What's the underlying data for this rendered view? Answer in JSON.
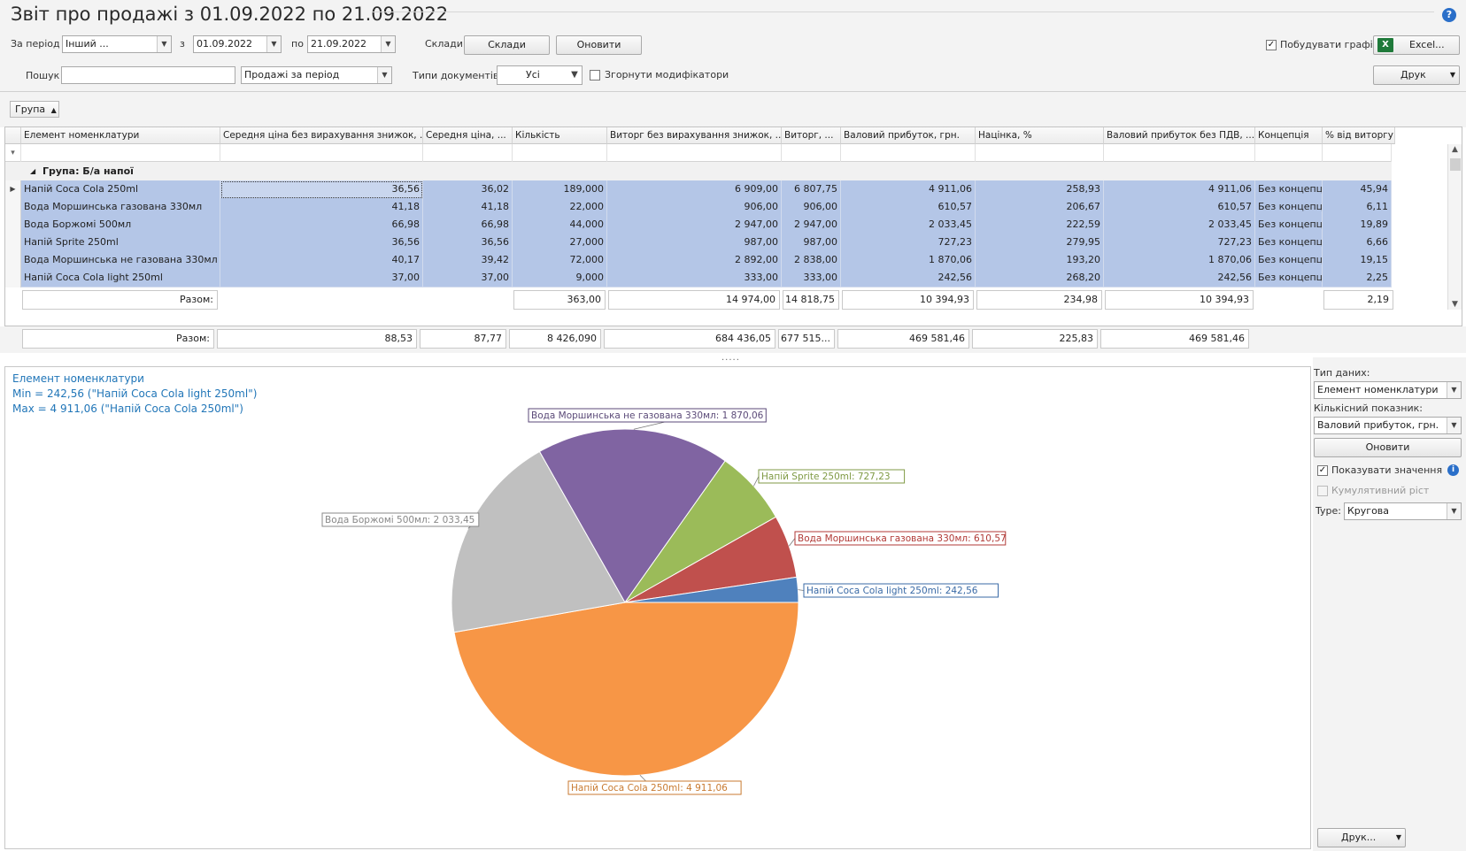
{
  "title": "Звіт про продажі з 01.09.2022 по 21.09.2022",
  "toolbar": {
    "period_label": "За період",
    "period_value": "Інший ...",
    "from_label": "з",
    "from_value": "01.09.2022",
    "to_label": "по",
    "to_value": "21.09.2022",
    "warehouses_label": "Склади:",
    "warehouses_button": "Склади",
    "refresh_button": "Оновити",
    "build_chart_label": "Побудувати графік",
    "build_chart_checked": true,
    "excel_button": "Excel...",
    "search_label": "Пошук",
    "search_value": "",
    "report_type_value": "Продажі за період",
    "doc_types_label": "Типи документів:",
    "doc_types_value": "Усі",
    "collapse_modifiers_label": "Згорнути модифікатори",
    "print_button": "Друк"
  },
  "group_chip": "Група",
  "grid": {
    "columns": [
      "Елемент номенклатури",
      "Середня ціна без вирахування знижок, ...",
      "Середня ціна, ...",
      "Кількість",
      "Виторг без вирахування знижок, ...",
      "Виторг, ...",
      "Валовий прибуток, грн.",
      "Націнка, %",
      "Валовий прибуток без ПДВ, ...",
      "Концепція",
      "% від виторгу"
    ],
    "group_label": "Група: Б/а напої",
    "rows": [
      [
        "Напій Coca Cola 250ml",
        "36,56",
        "36,02",
        "189,000",
        "6 909,00",
        "6 807,75",
        "4 911,06",
        "258,93",
        "4 911,06",
        "Без концепції",
        "45,94"
      ],
      [
        "Вода Моршинська газована 330мл",
        "41,18",
        "41,18",
        "22,000",
        "906,00",
        "906,00",
        "610,57",
        "206,67",
        "610,57",
        "Без концепції",
        "6,11"
      ],
      [
        "Вода Боржомі 500мл",
        "66,98",
        "66,98",
        "44,000",
        "2 947,00",
        "2 947,00",
        "2 033,45",
        "222,59",
        "2 033,45",
        "Без концепції",
        "19,89"
      ],
      [
        "Напій Sprite 250ml",
        "36,56",
        "36,56",
        "27,000",
        "987,00",
        "987,00",
        "727,23",
        "279,95",
        "727,23",
        "Без концепції",
        "6,66"
      ],
      [
        "Вода Моршинська не газована 330мл",
        "40,17",
        "39,42",
        "72,000",
        "2 892,00",
        "2 838,00",
        "1 870,06",
        "193,20",
        "1 870,06",
        "Без концепції",
        "19,15"
      ],
      [
        "Напій Coca Cola light 250ml",
        "37,00",
        "37,00",
        "9,000",
        "333,00",
        "333,00",
        "242,56",
        "268,20",
        "242,56",
        "Без концепції",
        "2,25"
      ]
    ],
    "group_total": {
      "label": "Разом:",
      "qty": "363,00",
      "revenue_gross": "14 974,00",
      "revenue": "14 818,75",
      "gross_profit": "10 394,93",
      "markup": "234,98",
      "gross_profit_novat": "10 394,93",
      "pct": "2,19"
    },
    "grand_total": {
      "label": "Разом:",
      "avg_price_gross": "88,53",
      "avg_price": "87,77",
      "qty": "8 426,090",
      "revenue_gross": "684 436,05",
      "revenue": "677 515...",
      "gross_profit": "469 581,46",
      "markup": "225,83",
      "gross_profit_novat": "469 581,46"
    }
  },
  "splitter": ".....",
  "chart_info": {
    "line1": "Елемент номенклатури",
    "line2": "Min  = 242,56 (\"Напій Coca Cola light 250ml\")",
    "line3": "Max = 4 911,06 (\"Напій Coca Cola 250ml\")"
  },
  "chart_data": {
    "type": "pie",
    "categories": [
      "Напій Coca Cola 250ml",
      "Вода Моршинська газована 330мл",
      "Вода Боржомі 500мл",
      "Напій Sprite 250ml",
      "Вода Моршинська не газована 330мл",
      "Напій Coca Cola light 250ml"
    ],
    "values": [
      4911.06,
      610.57,
      2033.45,
      727.23,
      1870.06,
      242.56
    ],
    "labels": [
      "Напій Coca Cola 250ml: 4 911,06",
      "Вода Моршинська газована 330мл: 610,57",
      "Вода Боржомі 500мл: 2 033,45",
      "Напій Sprite 250ml: 727,23",
      "Вода Моршинська не газована 330мл: 1 870,06",
      "Напій Coca Cola light 250ml: 242,56"
    ],
    "colors": [
      "#f79646",
      "#c0504d",
      "#c0c0c0",
      "#9bbb59",
      "#8064a2",
      "#4f81bd"
    ],
    "label_colors": [
      "#c87a30",
      "#b13a37",
      "#888888",
      "#7f9a44",
      "#5b4a78",
      "#3a6aa6"
    ]
  },
  "side_panel": {
    "data_type_label": "Тип даних:",
    "data_type_value": "Елемент номенклатури",
    "metric_label": "Кількісний показник:",
    "metric_value": "Валовий прибуток, грн.",
    "refresh_button": "Оновити",
    "show_values_label": "Показувати значення",
    "show_values_checked": true,
    "cumulative_label": "Кумулятивний ріст",
    "type_label": "Type:",
    "type_value": "Кругова",
    "print_button": "Друк..."
  }
}
